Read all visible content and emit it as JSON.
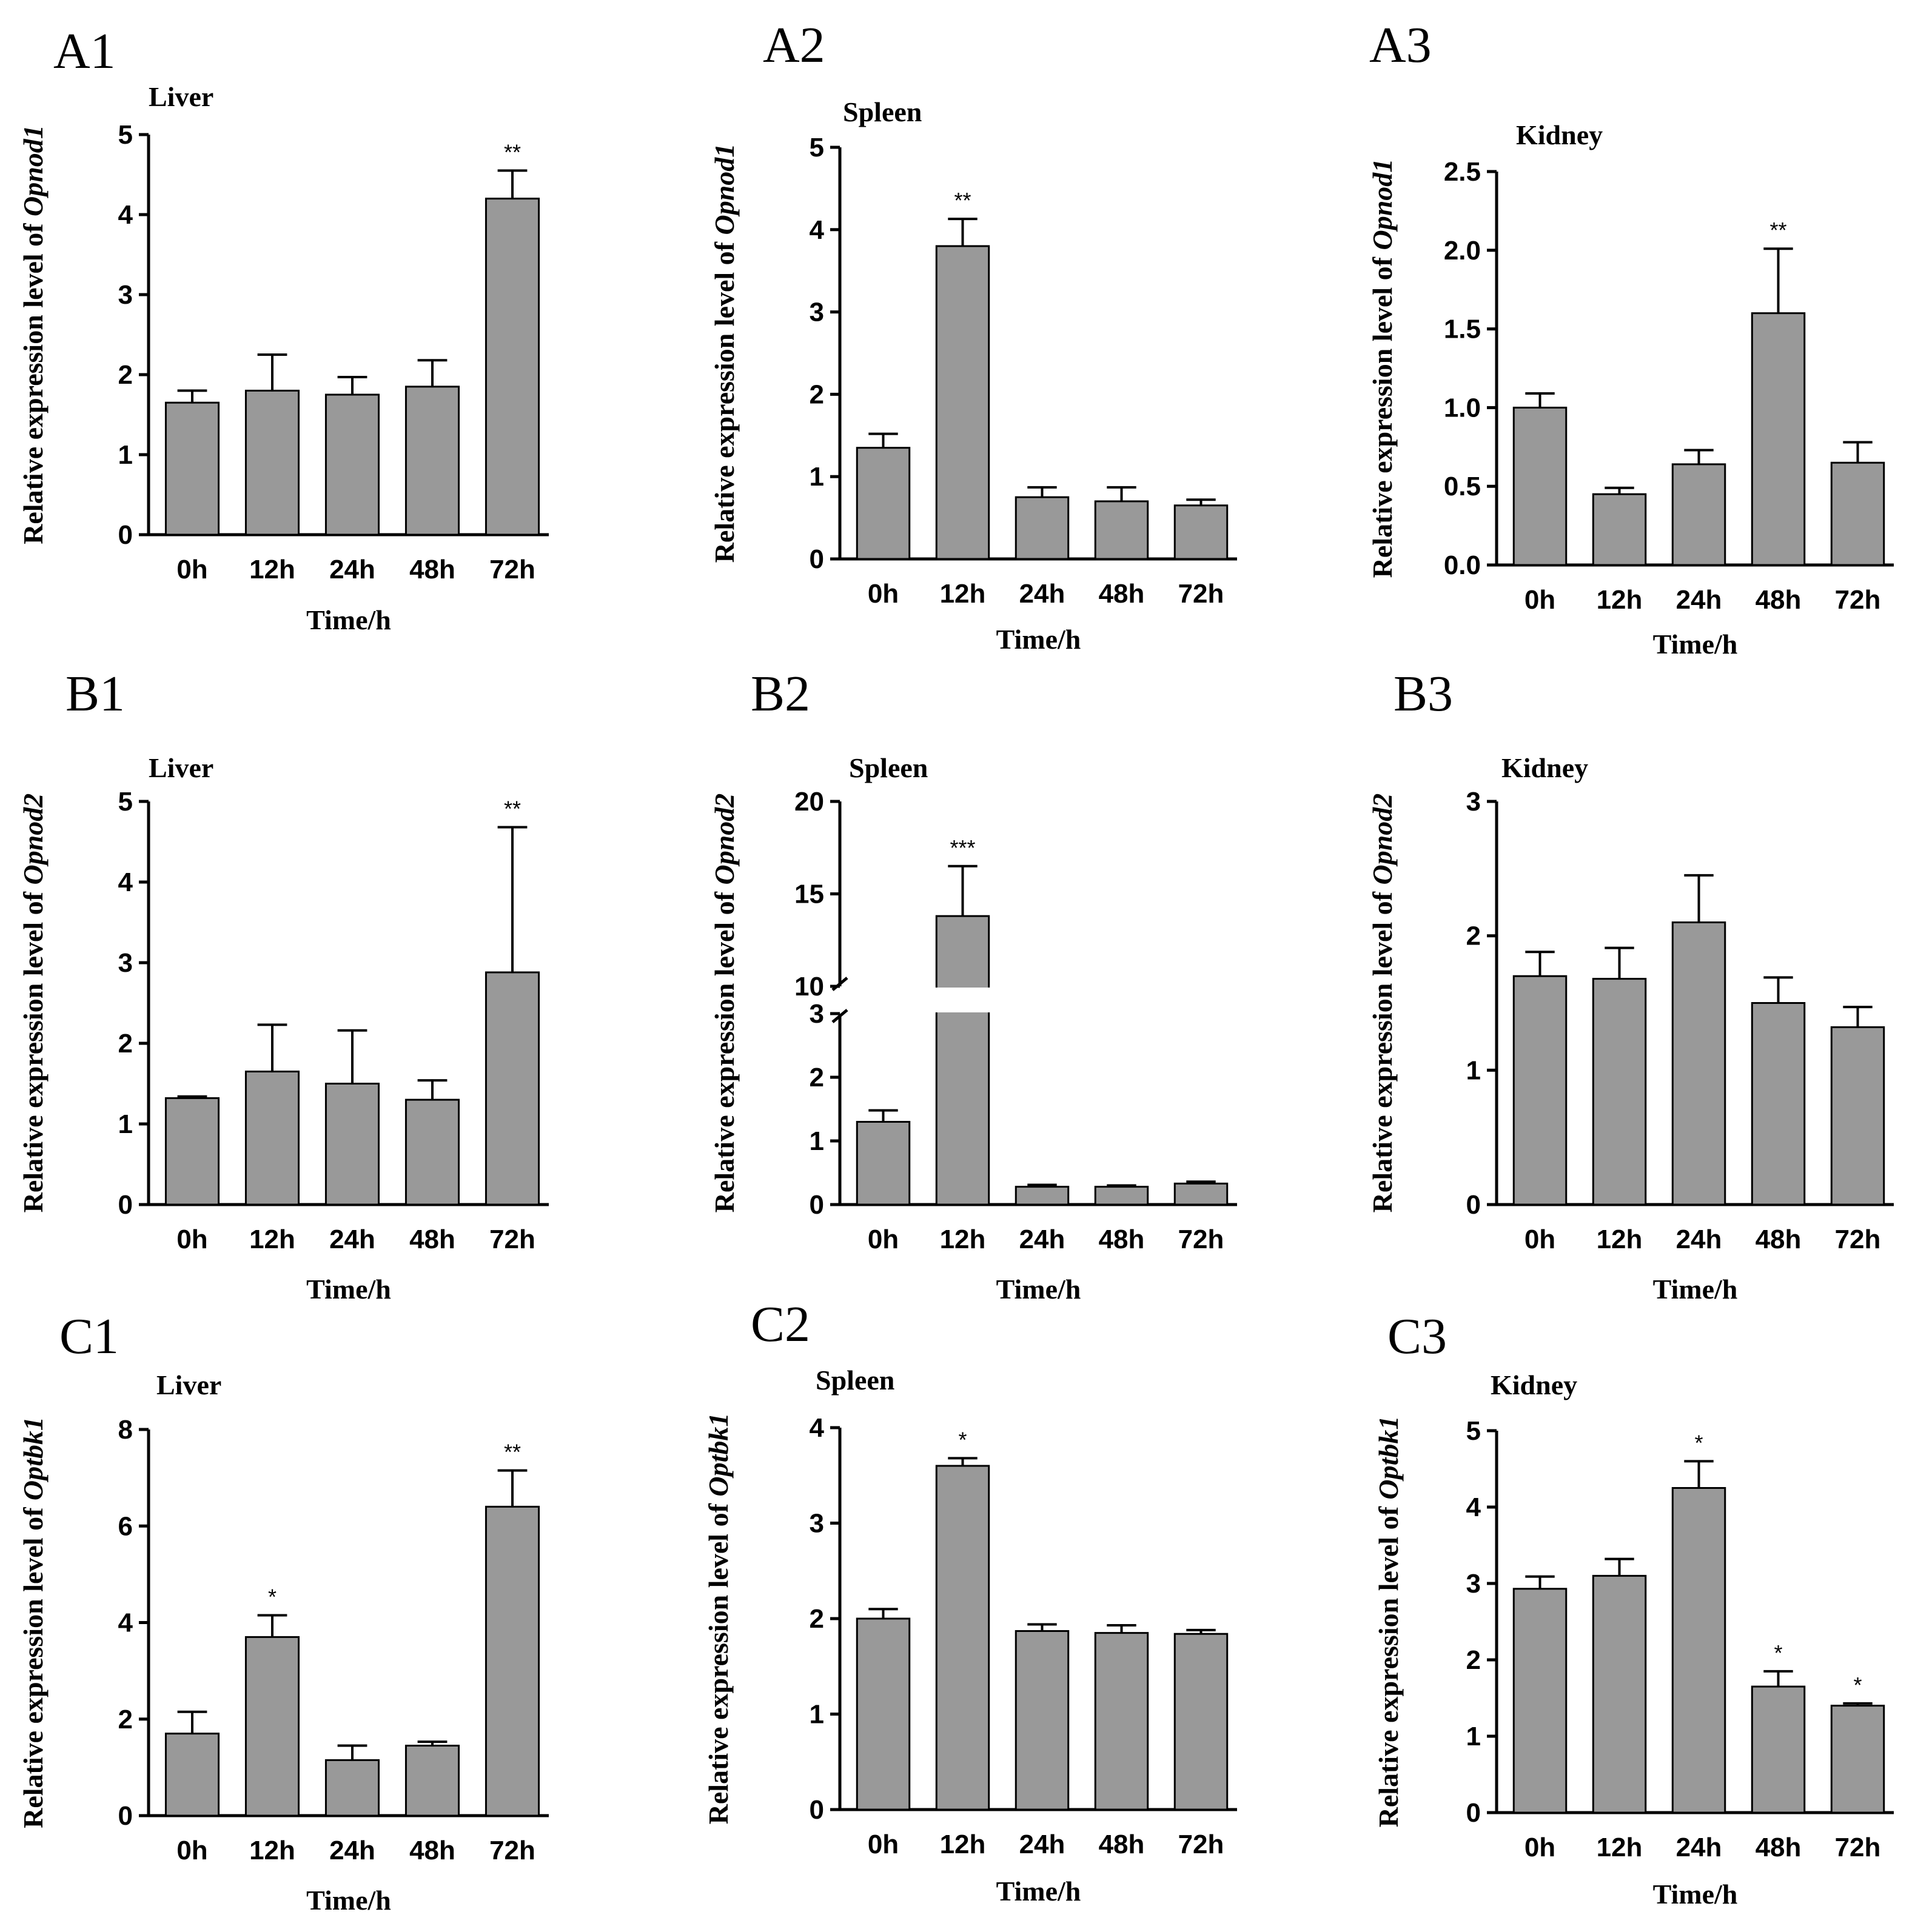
{
  "chart_data": [
    {
      "id": "A1",
      "panel_label": "A1",
      "type": "bar",
      "title": "Liver",
      "ylabel_prefix": "Relative expression level of ",
      "ylabel_gene": "Opnod1",
      "xlabel": "Time/h",
      "categories": [
        "0h",
        "12h",
        "24h",
        "48h",
        "72h"
      ],
      "values": [
        1.65,
        1.8,
        1.75,
        1.85,
        4.2
      ],
      "errors": [
        0.15,
        0.45,
        0.22,
        0.33,
        0.35
      ],
      "significance": [
        "",
        "",
        "",
        "",
        "**"
      ],
      "ylim": [
        0,
        5
      ],
      "yticks": [
        "0",
        "1",
        "2",
        "3",
        "4",
        "5"
      ]
    },
    {
      "id": "A2",
      "panel_label": "A2",
      "type": "bar",
      "title": "Spleen",
      "ylabel_prefix": "Relative expression level of ",
      "ylabel_gene": "Opnod1",
      "xlabel": "Time/h",
      "categories": [
        "0h",
        "12h",
        "24h",
        "48h",
        "72h"
      ],
      "values": [
        1.35,
        3.8,
        0.75,
        0.7,
        0.65
      ],
      "errors": [
        0.17,
        0.33,
        0.12,
        0.17,
        0.07
      ],
      "significance": [
        "",
        "**",
        "",
        "",
        ""
      ],
      "ylim": [
        0,
        5
      ],
      "yticks": [
        "0",
        "1",
        "2",
        "3",
        "4",
        "5"
      ]
    },
    {
      "id": "A3",
      "panel_label": "A3",
      "type": "bar",
      "title": "Kidney",
      "ylabel_prefix": "Relative expression level of ",
      "ylabel_gene": "Opnod1",
      "xlabel": "Time/h",
      "categories": [
        "0h",
        "12h",
        "24h",
        "48h",
        "72h"
      ],
      "values": [
        1.0,
        0.45,
        0.64,
        1.6,
        0.65
      ],
      "errors": [
        0.09,
        0.04,
        0.09,
        0.41,
        0.13
      ],
      "significance": [
        "",
        "",
        "",
        "**",
        ""
      ],
      "ylim": [
        0,
        2.5
      ],
      "yticks": [
        "0.0",
        "0.5",
        "1.0",
        "1.5",
        "2.0",
        "2.5"
      ]
    },
    {
      "id": "B1",
      "panel_label": "B1",
      "type": "bar",
      "title": "Liver",
      "ylabel_prefix": "Relative expression level of ",
      "ylabel_gene": "Opnod2",
      "xlabel": "Time/h",
      "categories": [
        "0h",
        "12h",
        "24h",
        "48h",
        "72h"
      ],
      "values": [
        1.32,
        1.65,
        1.5,
        1.3,
        2.88
      ],
      "errors": [
        0.02,
        0.58,
        0.66,
        0.24,
        1.8
      ],
      "significance": [
        "",
        "",
        "",
        "",
        "**"
      ],
      "ylim": [
        0,
        5
      ],
      "yticks": [
        "0",
        "1",
        "2",
        "3",
        "4",
        "5"
      ]
    },
    {
      "id": "B2",
      "panel_label": "B2",
      "type": "bar",
      "title": "Spleen",
      "ylabel_prefix": "Relative expression level of ",
      "ylabel_gene": "Opnod2",
      "xlabel": "Time/h",
      "categories": [
        "0h",
        "12h",
        "24h",
        "48h",
        "72h"
      ],
      "values": [
        1.3,
        13.8,
        0.28,
        0.28,
        0.33
      ],
      "errors": [
        0.18,
        2.7,
        0.03,
        0.02,
        0.03
      ],
      "significance": [
        "",
        "***",
        "",
        "",
        ""
      ],
      "ylim": [
        0,
        20
      ],
      "broken_axis": {
        "lower": [
          0,
          3
        ],
        "upper": [
          10,
          20
        ]
      },
      "yticks_lower": [
        "0",
        "1",
        "2",
        "3"
      ],
      "yticks_upper": [
        "10",
        "15",
        "20"
      ]
    },
    {
      "id": "B3",
      "panel_label": "B3",
      "type": "bar",
      "title": "Kidney",
      "ylabel_prefix": "Relative expression level of ",
      "ylabel_gene": "Opnod2",
      "xlabel": "Time/h",
      "categories": [
        "0h",
        "12h",
        "24h",
        "48h",
        "72h"
      ],
      "values": [
        1.7,
        1.68,
        2.1,
        1.5,
        1.32
      ],
      "errors": [
        0.18,
        0.23,
        0.35,
        0.19,
        0.15
      ],
      "significance": [
        "",
        "",
        "",
        "",
        ""
      ],
      "ylim": [
        0,
        3
      ],
      "yticks": [
        "0",
        "1",
        "2",
        "3"
      ]
    },
    {
      "id": "C1",
      "panel_label": "C1",
      "type": "bar",
      "title": "Liver",
      "ylabel_prefix": "Relative expression level of ",
      "ylabel_gene": "Optbk1",
      "xlabel": "Time/h",
      "categories": [
        "0h",
        "12h",
        "24h",
        "48h",
        "72h"
      ],
      "values": [
        1.7,
        3.7,
        1.15,
        1.45,
        6.4
      ],
      "errors": [
        0.45,
        0.45,
        0.3,
        0.08,
        0.75
      ],
      "significance": [
        "",
        "*",
        "",
        "",
        "**"
      ],
      "ylim": [
        0,
        8
      ],
      "yticks": [
        "0",
        "2",
        "4",
        "6",
        "8"
      ]
    },
    {
      "id": "C2",
      "panel_label": "C2",
      "type": "bar",
      "title": "Spleen",
      "ylabel_prefix": "Relative expression level of ",
      "ylabel_gene": "Optbk1",
      "xlabel": "Time/h",
      "categories": [
        "0h",
        "12h",
        "24h",
        "48h",
        "72h"
      ],
      "values": [
        2.0,
        3.6,
        1.87,
        1.85,
        1.84
      ],
      "errors": [
        0.1,
        0.08,
        0.07,
        0.08,
        0.04
      ],
      "significance": [
        "",
        "*",
        "",
        "",
        ""
      ],
      "ylim": [
        0,
        4
      ],
      "yticks": [
        "0",
        "1",
        "2",
        "3",
        "4"
      ]
    },
    {
      "id": "C3",
      "panel_label": "C3",
      "type": "bar",
      "title": "Kidney",
      "ylabel_prefix": "Relative expression level of ",
      "ylabel_gene": "Optbk1",
      "xlabel": "Time/h",
      "categories": [
        "0h",
        "12h",
        "24h",
        "48h",
        "72h"
      ],
      "values": [
        2.93,
        3.1,
        4.25,
        1.65,
        1.4
      ],
      "errors": [
        0.16,
        0.22,
        0.35,
        0.2,
        0.03
      ],
      "significance": [
        "",
        "",
        "*",
        "*",
        "*"
      ],
      "ylim": [
        0,
        5
      ],
      "yticks": [
        "0",
        "1",
        "2",
        "3",
        "4",
        "5"
      ]
    }
  ],
  "colors": {
    "bar": "#999999",
    "stroke": "#000000"
  }
}
